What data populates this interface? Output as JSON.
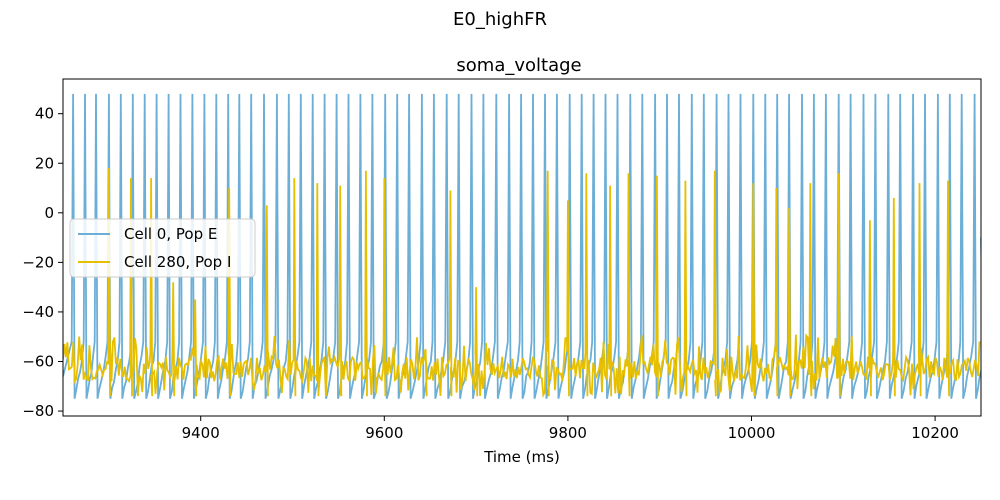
{
  "figure": {
    "suptitle": "E0_highFR"
  },
  "chart_data": {
    "type": "line",
    "title": "soma_voltage",
    "xlabel": "Time (ms)",
    "ylabel": "",
    "xlim": [
      9250,
      10250
    ],
    "ylim": [
      -82,
      54
    ],
    "xticks": [
      9400,
      9600,
      9800,
      10000,
      10200
    ],
    "yticks": [
      -80,
      -60,
      -40,
      -20,
      0,
      20,
      40
    ],
    "legend_position": "center-left",
    "grid": false,
    "series": [
      {
        "name": "Cell 0, Pop E",
        "color": "#6baed6",
        "spike_peak": 48,
        "reset_min": -75,
        "spike_times": [
          9261,
          9274,
          9286,
          9300,
          9313,
          9326,
          9339,
          9352,
          9365,
          9378,
          9391,
          9404,
          9417,
          9430,
          9442,
          9455,
          9469,
          9483,
          9496,
          9509,
          9522,
          9535,
          9548,
          9561,
          9574,
          9587,
          9601,
          9614,
          9627,
          9641,
          9654,
          9668,
          9681,
          9695,
          9708,
          9722,
          9736,
          9749,
          9762,
          9775,
          9788,
          9802,
          9815,
          9828,
          9841,
          9854,
          9868,
          9881,
          9895,
          9908,
          9921,
          9935,
          9948,
          9962,
          9975,
          9988,
          10002,
          10015,
          10028,
          10041,
          10055,
          10068,
          10081,
          10095,
          10108,
          10122,
          10135,
          10149,
          10162,
          10176,
          10189,
          10203,
          10216,
          10229,
          10243
        ]
      },
      {
        "name": "Cell 280, Pop I",
        "color": "#e6c000",
        "baseline": -63,
        "spikes": [
          {
            "t": 9300,
            "v": 18
          },
          {
            "t": 9324,
            "v": 14
          },
          {
            "t": 9346,
            "v": 14
          },
          {
            "t": 9370,
            "v": -28
          },
          {
            "t": 9394,
            "v": -35
          },
          {
            "t": 9431,
            "v": 10
          },
          {
            "t": 9472,
            "v": 3
          },
          {
            "t": 9502,
            "v": 14
          },
          {
            "t": 9527,
            "v": 12
          },
          {
            "t": 9552,
            "v": 11
          },
          {
            "t": 9580,
            "v": 17
          },
          {
            "t": 9600,
            "v": 14
          },
          {
            "t": 9645,
            "v": -55
          },
          {
            "t": 9672,
            "v": 9
          },
          {
            "t": 9700,
            "v": -30
          },
          {
            "t": 9778,
            "v": 17
          },
          {
            "t": 9800,
            "v": 5
          },
          {
            "t": 9820,
            "v": 16
          },
          {
            "t": 9846,
            "v": 11
          },
          {
            "t": 9866,
            "v": 16
          },
          {
            "t": 9897,
            "v": 15
          },
          {
            "t": 9928,
            "v": 13
          },
          {
            "t": 9960,
            "v": 17
          },
          {
            "t": 10002,
            "v": 12
          },
          {
            "t": 10027,
            "v": 10
          },
          {
            "t": 10041,
            "v": 2
          },
          {
            "t": 10064,
            "v": 12
          },
          {
            "t": 10095,
            "v": 16
          },
          {
            "t": 10129,
            "v": -3
          },
          {
            "t": 10155,
            "v": 6
          },
          {
            "t": 10183,
            "v": 12
          },
          {
            "t": 10214,
            "v": 13
          }
        ]
      }
    ]
  }
}
